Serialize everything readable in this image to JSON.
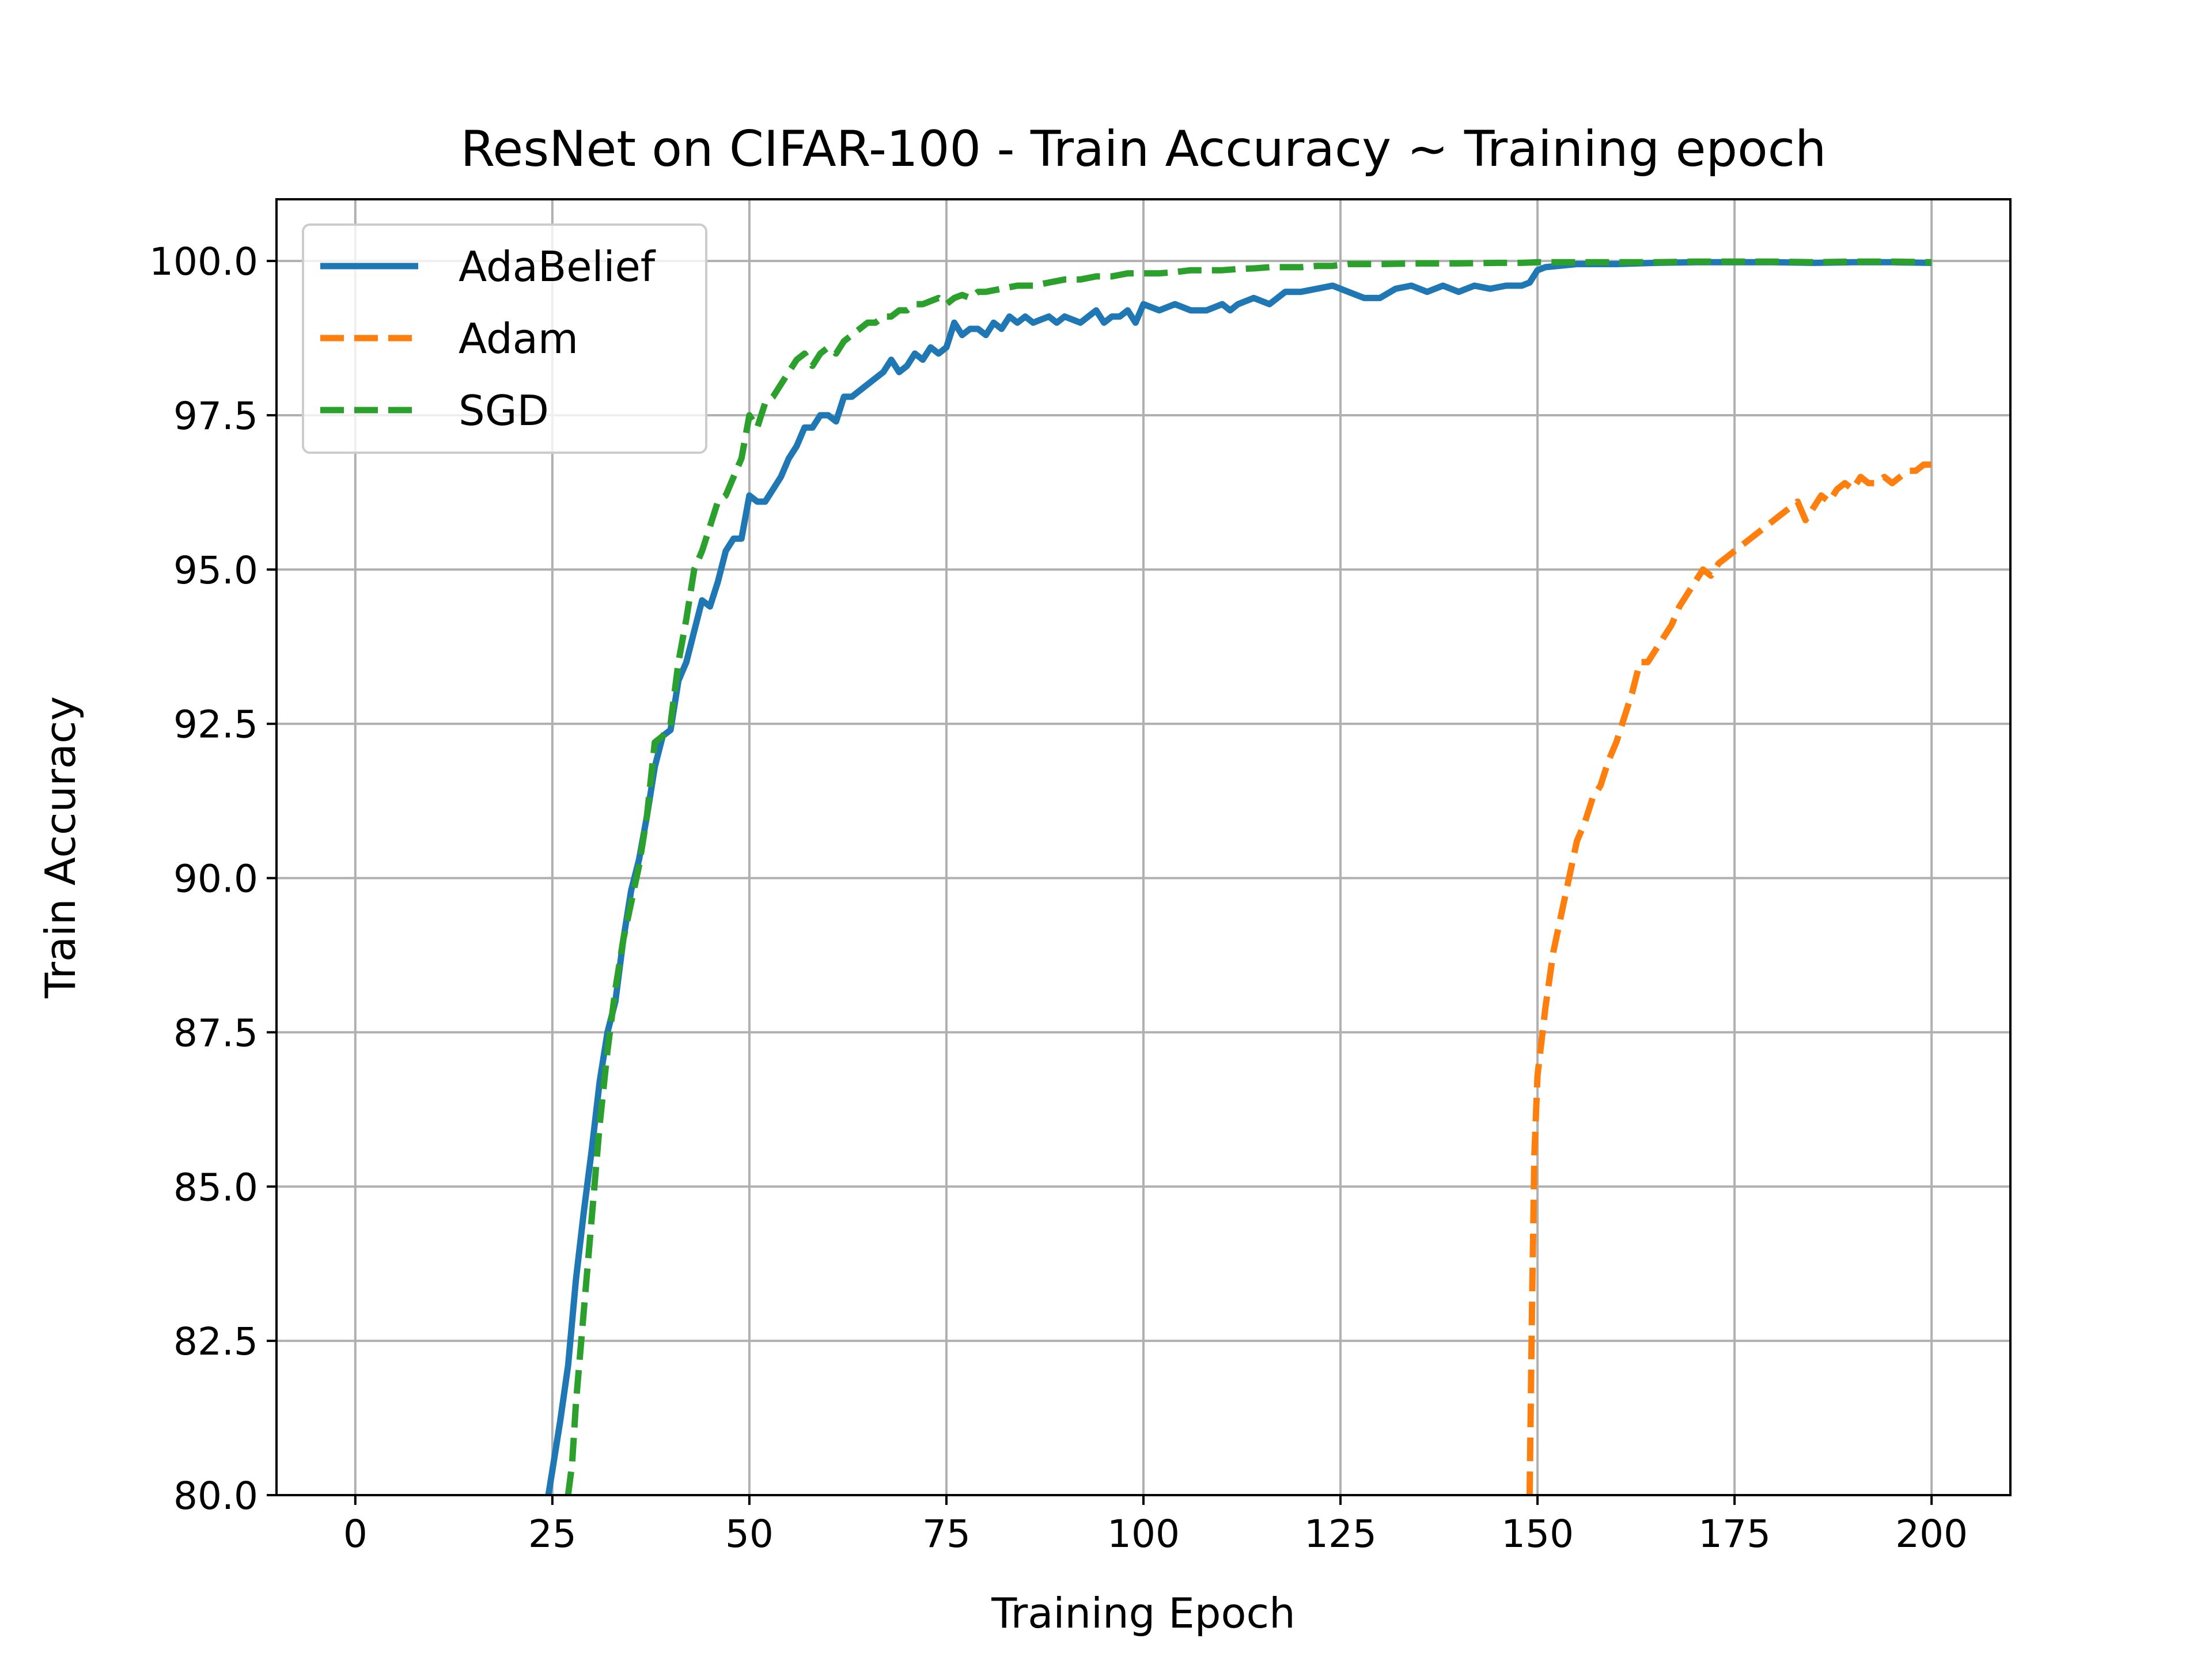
{
  "chart_data": {
    "type": "line",
    "title": "ResNet on CIFAR-100 - Train Accuracy ~ Training epoch",
    "xlabel": "Training Epoch",
    "ylabel": "Train Accuracy",
    "xlim": [
      -10,
      210
    ],
    "ylim": [
      80.0,
      101.0
    ],
    "xticks": [
      0,
      25,
      50,
      75,
      100,
      125,
      150,
      175,
      200
    ],
    "xtick_labels": [
      "0",
      "25",
      "50",
      "75",
      "100",
      "125",
      "150",
      "175",
      "200"
    ],
    "yticks": [
      80.0,
      82.5,
      85.0,
      87.5,
      90.0,
      92.5,
      95.0,
      97.5,
      100.0
    ],
    "ytick_labels": [
      "80.0",
      "82.5",
      "85.0",
      "87.5",
      "90.0",
      "92.5",
      "95.0",
      "97.5",
      "100.0"
    ],
    "grid": true,
    "legend_position": "upper-left",
    "series": [
      {
        "name": "AdaBelief",
        "color": "#1f77b4",
        "dash": "solid",
        "x": [
          24.5,
          25,
          26,
          27,
          28,
          29,
          30,
          31,
          32,
          33,
          34,
          35,
          36,
          37,
          38,
          39,
          40,
          41,
          42,
          43,
          44,
          45,
          46,
          47,
          48,
          49,
          50,
          51,
          52,
          53,
          54,
          55,
          56,
          57,
          58,
          59,
          60,
          61,
          62,
          63,
          64,
          65,
          66,
          67,
          68,
          69,
          70,
          71,
          72,
          73,
          74,
          75,
          76,
          77,
          78,
          79,
          80,
          81,
          82,
          83,
          84,
          85,
          86,
          87,
          88,
          89,
          90,
          92,
          94,
          95,
          96,
          97,
          98,
          99,
          100,
          102,
          104,
          106,
          108,
          110,
          111,
          112,
          114,
          116,
          118,
          120,
          122,
          124,
          126,
          128,
          130,
          132,
          134,
          136,
          138,
          140,
          142,
          144,
          146,
          148,
          149,
          150,
          151,
          155,
          160,
          165,
          170,
          175,
          180,
          185,
          190,
          195,
          200
        ],
        "values": [
          80.0,
          80.4,
          81.2,
          82.1,
          83.5,
          84.6,
          85.6,
          86.7,
          87.5,
          88.0,
          89.0,
          89.8,
          90.3,
          91.0,
          91.8,
          92.3,
          92.4,
          93.2,
          93.5,
          94.0,
          94.5,
          94.4,
          94.8,
          95.3,
          95.5,
          95.5,
          96.2,
          96.1,
          96.1,
          96.3,
          96.5,
          96.8,
          97.0,
          97.3,
          97.3,
          97.5,
          97.5,
          97.4,
          97.8,
          97.8,
          97.9,
          98.0,
          98.1,
          98.2,
          98.4,
          98.2,
          98.3,
          98.5,
          98.4,
          98.6,
          98.5,
          98.6,
          99.0,
          98.8,
          98.9,
          98.9,
          98.8,
          99.0,
          98.9,
          99.1,
          99.0,
          99.1,
          99.0,
          99.05,
          99.1,
          99.0,
          99.1,
          99.0,
          99.2,
          99.0,
          99.1,
          99.1,
          99.2,
          99.0,
          99.3,
          99.2,
          99.3,
          99.2,
          99.2,
          99.3,
          99.2,
          99.3,
          99.4,
          99.3,
          99.5,
          99.5,
          99.55,
          99.6,
          99.5,
          99.4,
          99.4,
          99.55,
          99.6,
          99.5,
          99.6,
          99.5,
          99.6,
          99.55,
          99.6,
          99.6,
          99.65,
          99.85,
          99.9,
          99.95,
          99.95,
          99.97,
          99.98,
          99.98,
          99.98,
          99.97,
          99.98,
          99.98,
          99.97
        ]
      },
      {
        "name": "Adam",
        "color": "#ff7f0e",
        "dash": "dashed",
        "x": [
          149.0,
          149.3,
          149.6,
          150,
          151,
          152,
          153,
          154,
          155,
          156,
          157,
          158,
          159,
          160,
          161,
          162,
          163,
          164,
          165,
          166,
          167,
          168,
          169,
          170,
          171,
          172,
          173,
          174,
          175,
          176,
          177,
          178,
          179,
          180,
          181,
          182,
          183,
          184,
          185,
          186,
          187,
          188,
          189,
          190,
          191,
          192,
          193,
          194,
          195,
          196,
          197,
          198,
          199,
          200
        ],
        "values": [
          80.0,
          83.0,
          85.5,
          86.8,
          87.9,
          88.8,
          89.4,
          90.0,
          90.6,
          90.9,
          91.3,
          91.5,
          91.9,
          92.2,
          92.6,
          93.0,
          93.5,
          93.5,
          93.7,
          93.9,
          94.1,
          94.4,
          94.6,
          94.8,
          95.0,
          94.9,
          95.1,
          95.2,
          95.3,
          95.4,
          95.5,
          95.6,
          95.7,
          95.8,
          95.9,
          96.0,
          96.1,
          95.8,
          96.0,
          96.2,
          96.1,
          96.3,
          96.4,
          96.3,
          96.5,
          96.4,
          96.4,
          96.5,
          96.4,
          96.5,
          96.6,
          96.6,
          96.7,
          96.7
        ]
      },
      {
        "name": "SGD",
        "color": "#2ca02c",
        "dash": "dashed",
        "x": [
          27.0,
          27.5,
          28,
          29,
          30,
          31,
          32,
          33,
          34,
          35,
          36,
          37,
          38,
          39,
          40,
          41,
          42,
          43,
          44,
          45,
          46,
          47,
          48,
          49,
          50,
          51,
          52,
          53,
          54,
          55,
          56,
          57,
          58,
          59,
          60,
          61,
          62,
          63,
          64,
          65,
          66,
          67,
          68,
          69,
          70,
          71,
          72,
          73,
          74,
          75,
          76,
          77,
          78,
          79,
          80,
          82,
          84,
          86,
          88,
          90,
          92,
          94,
          96,
          98,
          100,
          102,
          104,
          106,
          108,
          110,
          112,
          114,
          116,
          118,
          120,
          122,
          124,
          126,
          128,
          130,
          135,
          140,
          145,
          148,
          150,
          155,
          160,
          165,
          170,
          175,
          180,
          185,
          190,
          195,
          200
        ],
        "values": [
          80.0,
          80.5,
          81.5,
          83.0,
          84.5,
          86.0,
          87.2,
          88.2,
          89.0,
          89.6,
          90.2,
          91.0,
          92.2,
          92.3,
          92.5,
          93.5,
          94.2,
          95.0,
          95.3,
          95.7,
          96.1,
          96.2,
          96.5,
          96.8,
          97.5,
          97.3,
          97.7,
          97.8,
          98.0,
          98.2,
          98.4,
          98.5,
          98.3,
          98.5,
          98.6,
          98.5,
          98.7,
          98.8,
          98.9,
          99.0,
          99.0,
          99.1,
          99.1,
          99.2,
          99.2,
          99.3,
          99.3,
          99.35,
          99.4,
          99.3,
          99.4,
          99.45,
          99.4,
          99.5,
          99.5,
          99.55,
          99.6,
          99.6,
          99.65,
          99.7,
          99.7,
          99.75,
          99.75,
          99.8,
          99.8,
          99.8,
          99.82,
          99.85,
          99.85,
          99.85,
          99.87,
          99.88,
          99.9,
          99.9,
          99.9,
          99.92,
          99.92,
          99.95,
          99.95,
          99.95,
          99.96,
          99.96,
          99.97,
          99.97,
          99.98,
          99.98,
          99.98,
          99.98,
          99.99,
          99.99,
          99.99,
          99.98,
          99.99,
          99.99,
          99.98
        ]
      }
    ]
  }
}
